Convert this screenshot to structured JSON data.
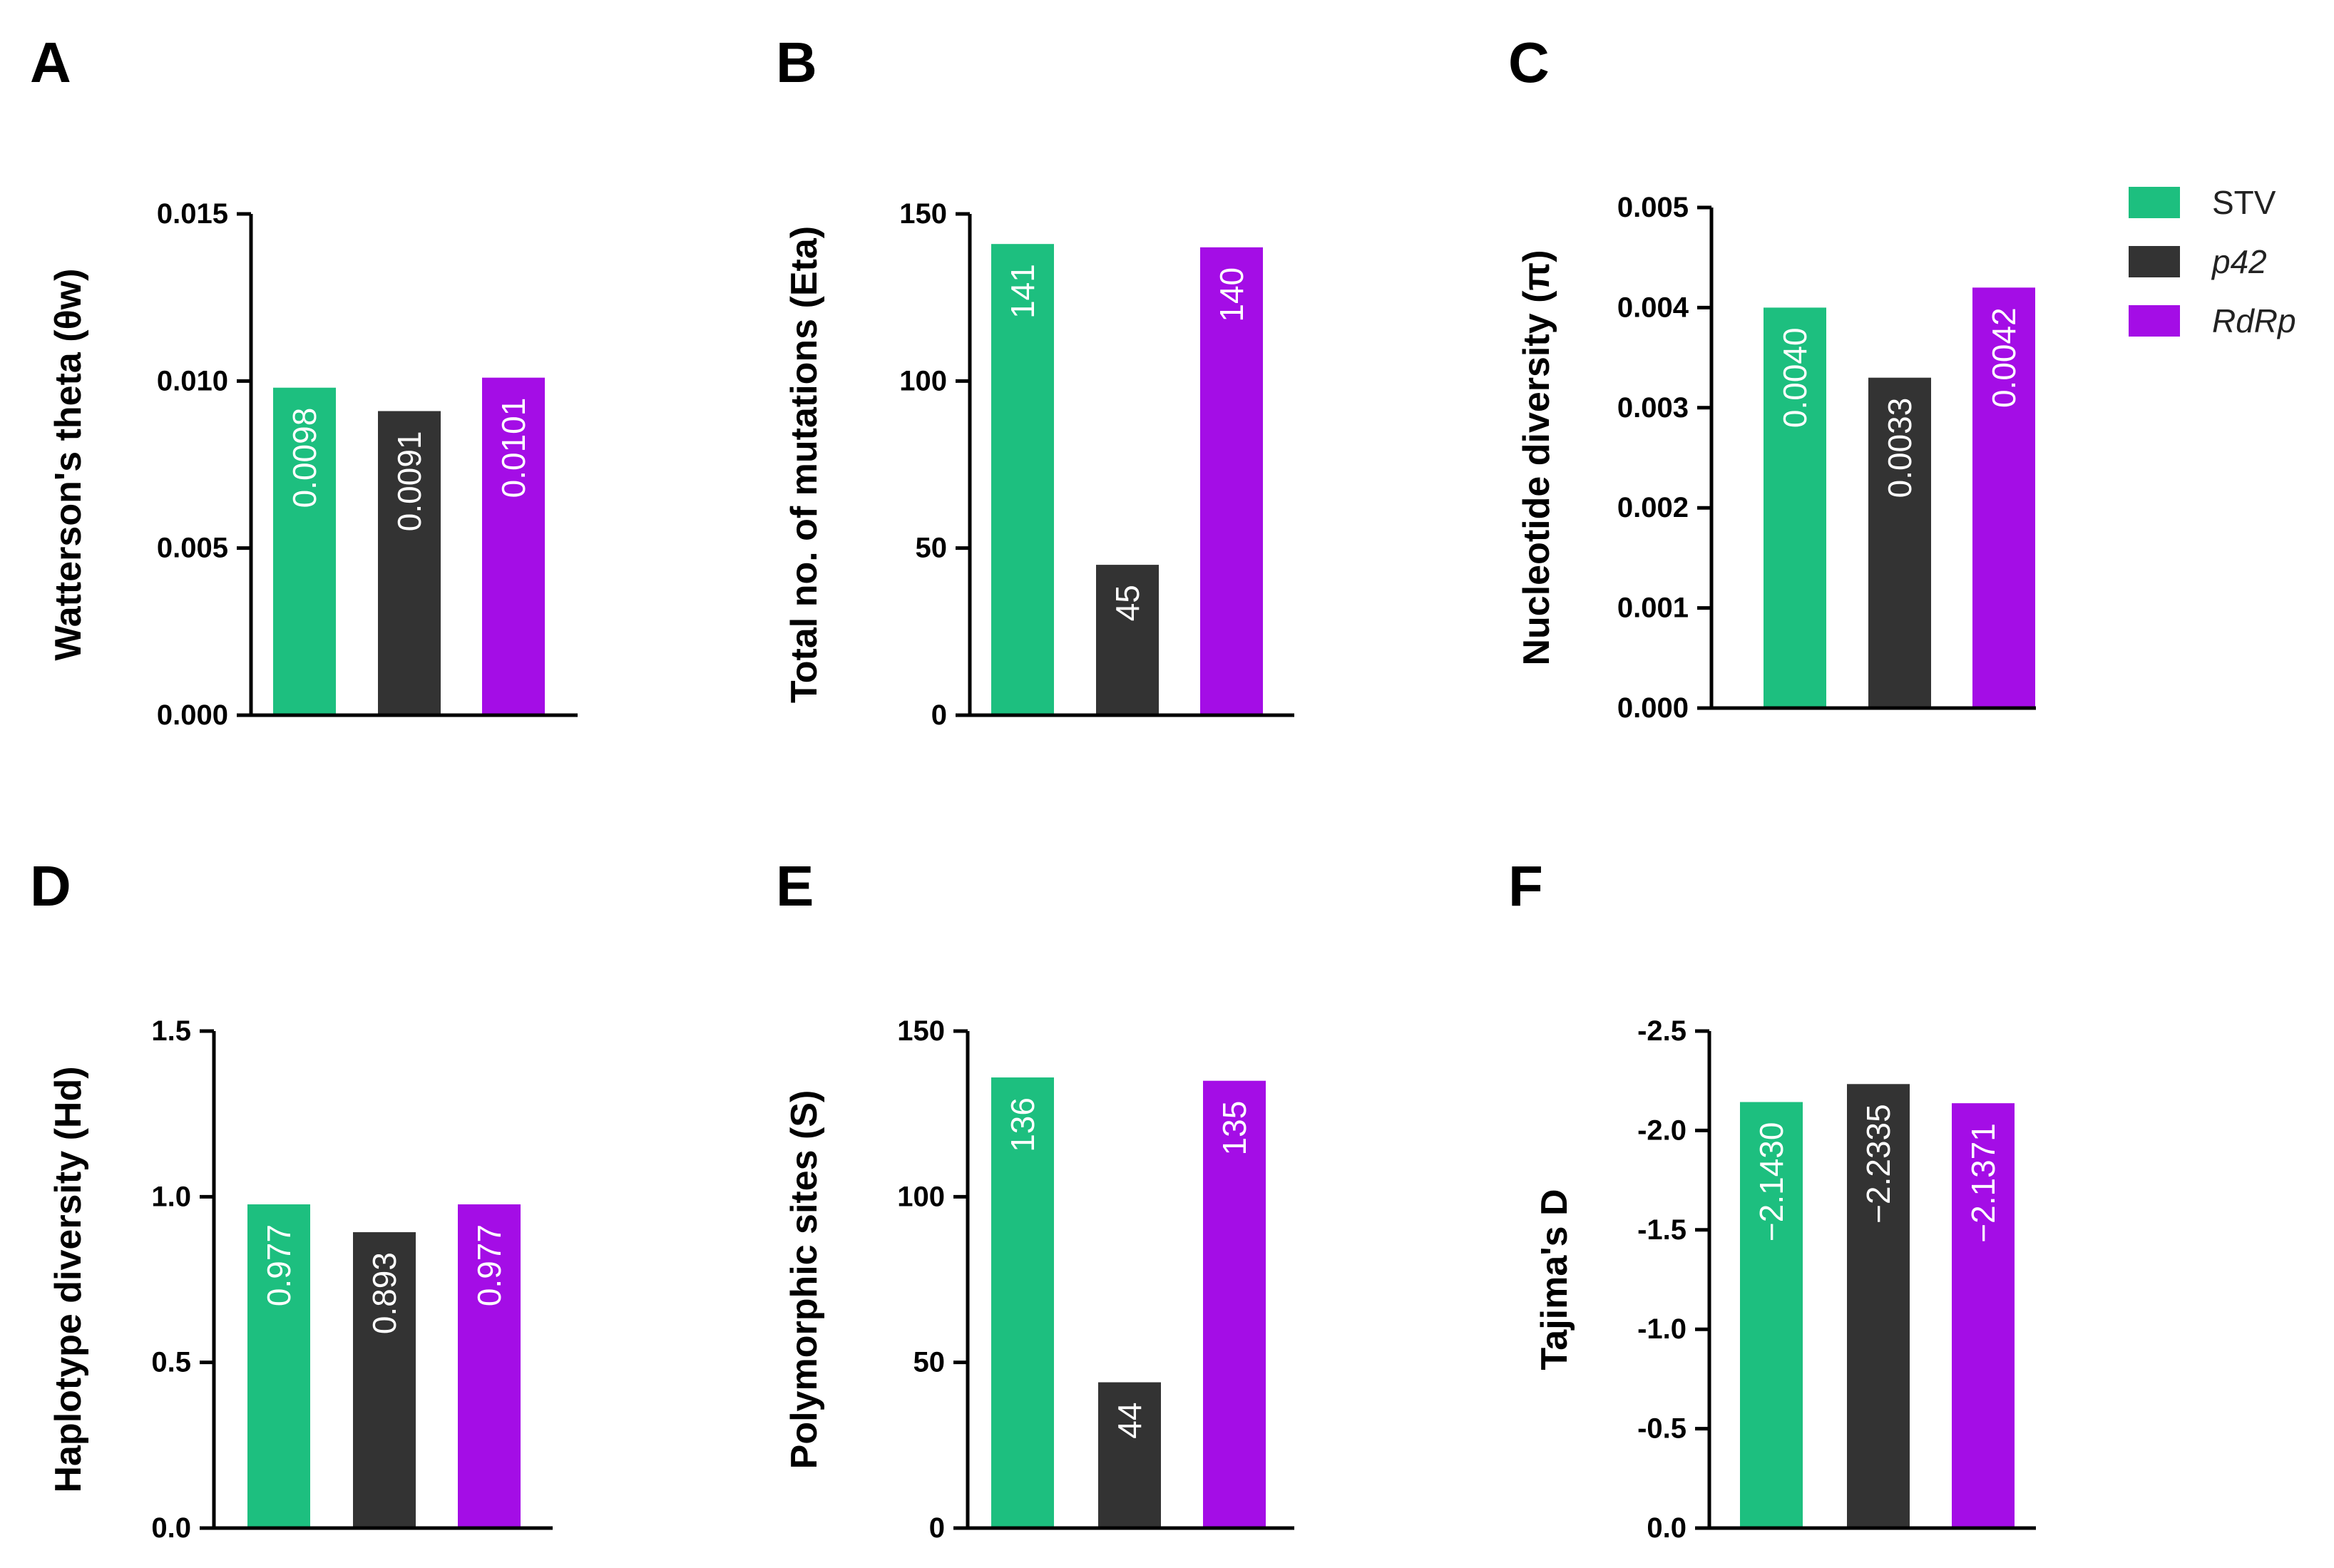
{
  "legend": [
    {
      "name": "STV",
      "italic": false
    },
    {
      "name": "p42",
      "italic": true
    },
    {
      "name": "RdRp",
      "italic": true
    }
  ],
  "series_colors": [
    "#1dbf7f",
    "#333333",
    "#a40de6"
  ],
  "chart_data": [
    {
      "panel": "A",
      "type": "bar",
      "categories": [
        "STV",
        "p42",
        "RdRp"
      ],
      "values": [
        0.0098,
        0.0091,
        0.0101
      ],
      "value_labels": [
        "0.0098",
        "0.0091",
        "0.0101"
      ],
      "ylabel": "Watterson's theta (θw)",
      "ylim": [
        0,
        0.015
      ],
      "yticks": [
        0,
        0.005,
        0.01,
        0.015
      ],
      "ytick_labels": [
        "0.000",
        "0.005",
        "0.010",
        "0.015"
      ],
      "grid": false
    },
    {
      "panel": "B",
      "type": "bar",
      "categories": [
        "STV",
        "p42",
        "RdRp"
      ],
      "values": [
        141,
        45,
        140
      ],
      "value_labels": [
        "141",
        "45",
        "140"
      ],
      "ylabel": "Total no. of mutations (Eta)",
      "ylim": [
        0,
        150
      ],
      "yticks": [
        0,
        50,
        100,
        150
      ],
      "ytick_labels": [
        "0",
        "50",
        "100",
        "150"
      ],
      "grid": false
    },
    {
      "panel": "C",
      "type": "bar",
      "categories": [
        "STV",
        "p42",
        "RdRp"
      ],
      "values": [
        0.004,
        0.0033,
        0.0042
      ],
      "value_labels": [
        "0.0040",
        "0.0033",
        "0.0042"
      ],
      "ylabel": "Nucleotide diversity (π)",
      "ylim": [
        0,
        0.005
      ],
      "yticks": [
        0,
        0.001,
        0.002,
        0.003,
        0.004,
        0.005
      ],
      "ytick_labels": [
        "0.000",
        "0.001",
        "0.002",
        "0.003",
        "0.004",
        "0.005"
      ],
      "grid": false
    },
    {
      "panel": "D",
      "type": "bar",
      "categories": [
        "STV",
        "p42",
        "RdRp"
      ],
      "values": [
        0.977,
        0.893,
        0.977
      ],
      "value_labels": [
        "0.977",
        "0.893",
        "0.977"
      ],
      "ylabel": "Haplotype diversity (Hd)",
      "ylim": [
        0,
        1.5
      ],
      "yticks": [
        0,
        0.5,
        1.0,
        1.5
      ],
      "ytick_labels": [
        "0.0",
        "0.5",
        "1.0",
        "1.5"
      ],
      "grid": false
    },
    {
      "panel": "E",
      "type": "bar",
      "categories": [
        "STV",
        "p42",
        "RdRp"
      ],
      "values": [
        136,
        44,
        135
      ],
      "value_labels": [
        "136",
        "44",
        "135"
      ],
      "ylabel": "Polymorphic sites (S)",
      "ylim": [
        0,
        150
      ],
      "yticks": [
        0,
        50,
        100,
        150
      ],
      "ytick_labels": [
        "0",
        "50",
        "100",
        "150"
      ],
      "grid": false
    },
    {
      "panel": "F",
      "type": "bar",
      "categories": [
        "STV",
        "p42",
        "RdRp"
      ],
      "values": [
        -2.143,
        -2.2335,
        -2.1371
      ],
      "value_labels": [
        "−2.1430",
        "−2.2335",
        "−2.1371"
      ],
      "ylabel": "Tajima's D",
      "ylim": [
        0,
        -2.5
      ],
      "yticks": [
        0,
        -0.5,
        -1.0,
        -1.5,
        -2.0,
        -2.5
      ],
      "ytick_labels": [
        "0.0",
        "-0.5",
        "-1.0",
        "-1.5",
        "-2.0",
        "-2.5"
      ],
      "inverted_axis": true,
      "grid": false
    }
  ]
}
